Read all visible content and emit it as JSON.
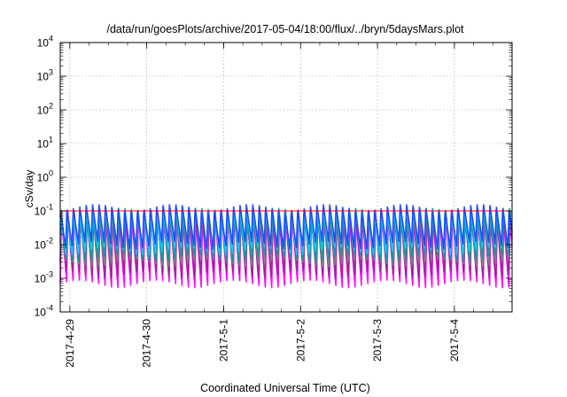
{
  "chart_data": {
    "type": "line",
    "title": "/data/run/goesPlots/archive/2017-05-04/18:00/flux/../bryn/5daysMars.plot",
    "xlabel": "Coordinated Universal Time (UTC)",
    "ylabel": "cSv/day",
    "yscale": "log",
    "ylim": [
      0.0001,
      10000
    ],
    "xlim": [
      "2017-04-28T21:00",
      "2017-05-04T18:00"
    ],
    "grid": true,
    "x_ticks": [
      "2017-4-29",
      "2017-4-30",
      "2017-5-1",
      "2017-5-2",
      "2017-5-3",
      "2017-5-4"
    ],
    "y_ticks": [
      {
        "base": "10",
        "exp": "-4",
        "value": 0.0001
      },
      {
        "base": "10",
        "exp": "-3",
        "value": 0.001
      },
      {
        "base": "10",
        "exp": "-2",
        "value": 0.01
      },
      {
        "base": "10",
        "exp": "-1",
        "value": 0.1
      },
      {
        "base": "10",
        "exp": "0",
        "value": 1
      },
      {
        "base": "10",
        "exp": "1",
        "value": 10
      },
      {
        "base": "10",
        "exp": "2",
        "value": 100
      },
      {
        "base": "10",
        "exp": "3",
        "value": 1000
      },
      {
        "base": "10",
        "exp": "4",
        "value": 10000
      }
    ],
    "orbit_period_hours": 2,
    "series": [
      {
        "color": "#ff00ff",
        "peak": 0.07,
        "trough": 0.0007
      },
      {
        "color": "#a020a0",
        "peak": 0.085,
        "trough": 0.0012
      },
      {
        "color": "#808080",
        "peak": 0.09,
        "trough": 0.0025
      },
      {
        "color": "#00a0a0",
        "peak": 0.1,
        "trough": 0.004
      },
      {
        "color": "#00d0ff",
        "peak": 0.11,
        "trough": 0.006
      },
      {
        "color": "#2040ff",
        "peak": 0.13,
        "trough": 0.01
      },
      {
        "color": "#ff0000",
        "peak": 0.1,
        "trough": 0.1
      }
    ]
  }
}
